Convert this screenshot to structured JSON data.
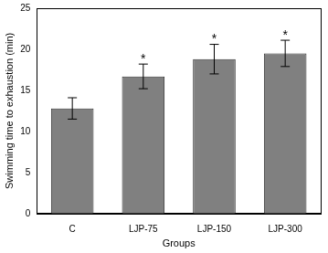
{
  "chart_data": {
    "type": "bar",
    "x_label": "Groups",
    "y_label": "Swimming time to exhaustion (min)",
    "categories": [
      "C",
      "LJP-75",
      "LJP-150",
      "LJP-300"
    ],
    "values": [
      12.8,
      16.7,
      18.8,
      19.5
    ],
    "errors": [
      1.3,
      1.5,
      1.8,
      1.6
    ],
    "annotations": [
      {
        "category": "LJP-75",
        "text": "*"
      },
      {
        "category": "LJP-150",
        "text": "*"
      },
      {
        "category": "LJP-300",
        "text": "*"
      }
    ],
    "color": "#808080",
    "ylim": [
      0,
      25
    ],
    "yticks": [
      0,
      5,
      10,
      15,
      20,
      25
    ],
    "grid": false
  }
}
